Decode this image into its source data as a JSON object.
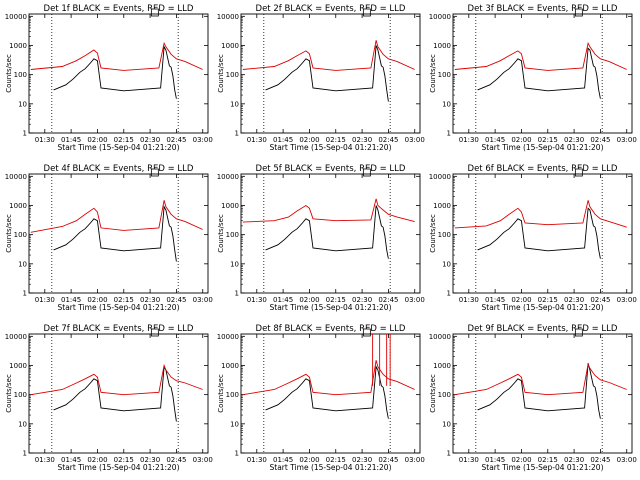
{
  "xlabel": "Start Time (15-Sep-04 01:21:20)",
  "ylabel": "Counts/sec",
  "series_names": [
    "Events",
    "LLD"
  ],
  "colors": {
    "events": "#000000",
    "lld": "#dd0000"
  },
  "x_ticks": [
    "01:30",
    "01:45",
    "02:00",
    "02:15",
    "02:30",
    "02:45",
    "03:00"
  ],
  "y_ticks": [
    "1",
    "10",
    "100",
    "1000",
    "10000"
  ],
  "chart_data": [
    {
      "type": "line",
      "title": "Det 1f BLACK = Events, RED = LLD",
      "y_scale": "log",
      "ylim": [
        1,
        12000
      ],
      "xlim_minutes_from_0121": [
        0,
        102
      ],
      "vlines": [
        "01:34",
        "02:46"
      ],
      "series": [
        {
          "name": "Events",
          "x": [
            "01:35",
            "01:42",
            "01:46",
            "01:50",
            "01:53",
            "01:56",
            "01:58",
            "02:00",
            "02:02",
            "02:15",
            "02:36",
            "02:38",
            "02:39",
            "02:41",
            "02:42",
            "02:43",
            "02:44",
            "02:45"
          ],
          "values": [
            30,
            45,
            70,
            120,
            160,
            250,
            350,
            300,
            35,
            28,
            35,
            900,
            700,
            200,
            180,
            90,
            30,
            15
          ]
        },
        {
          "name": "LLD",
          "x": [
            "01:22",
            "01:40",
            "01:48",
            "01:53",
            "01:58",
            "02:00",
            "02:02",
            "02:15",
            "02:35",
            "02:38",
            "02:39",
            "02:42",
            "02:45",
            "02:50",
            "03:00"
          ],
          "values": [
            150,
            190,
            300,
            450,
            700,
            550,
            170,
            140,
            170,
            1200,
            900,
            500,
            350,
            280,
            150
          ]
        }
      ]
    },
    {
      "type": "line",
      "title": "Det 2f BLACK = Events, RED = LLD",
      "y_scale": "log",
      "ylim": [
        1,
        12000
      ],
      "xlim_minutes_from_0121": [
        0,
        102
      ],
      "vlines": [
        "01:34",
        "02:46"
      ],
      "series": [
        {
          "name": "Events",
          "x": [
            "01:35",
            "01:42",
            "01:46",
            "01:50",
            "01:53",
            "01:56",
            "01:58",
            "02:00",
            "02:02",
            "02:15",
            "02:36",
            "02:38",
            "02:39",
            "02:41",
            "02:42",
            "02:43",
            "02:44",
            "02:45"
          ],
          "values": [
            30,
            45,
            70,
            120,
            160,
            250,
            350,
            300,
            35,
            28,
            35,
            1000,
            700,
            200,
            180,
            90,
            30,
            12
          ]
        },
        {
          "name": "LLD",
          "x": [
            "01:22",
            "01:40",
            "01:48",
            "01:53",
            "01:58",
            "02:00",
            "02:02",
            "02:15",
            "02:35",
            "02:38",
            "02:39",
            "02:42",
            "02:45",
            "02:50",
            "03:00"
          ],
          "values": [
            150,
            190,
            300,
            450,
            650,
            520,
            170,
            140,
            170,
            1500,
            900,
            500,
            350,
            280,
            150
          ]
        }
      ]
    },
    {
      "type": "line",
      "title": "Det 3f BLACK = Events, RED = LLD",
      "y_scale": "log",
      "ylim": [
        1,
        12000
      ],
      "xlim_minutes_from_0121": [
        0,
        102
      ],
      "vlines": [
        "01:34",
        "02:46"
      ],
      "series": [
        {
          "name": "Events",
          "x": [
            "01:35",
            "01:42",
            "01:46",
            "01:50",
            "01:53",
            "01:56",
            "01:58",
            "02:00",
            "02:02",
            "02:15",
            "02:36",
            "02:38",
            "02:39",
            "02:41",
            "02:42",
            "02:43",
            "02:44",
            "02:45"
          ],
          "values": [
            30,
            45,
            70,
            120,
            160,
            250,
            350,
            300,
            35,
            28,
            35,
            800,
            700,
            200,
            180,
            90,
            30,
            15
          ]
        },
        {
          "name": "LLD",
          "x": [
            "01:22",
            "01:40",
            "01:48",
            "01:53",
            "01:58",
            "02:00",
            "02:02",
            "02:15",
            "02:35",
            "02:38",
            "02:39",
            "02:42",
            "02:45",
            "02:50",
            "03:00"
          ],
          "values": [
            150,
            190,
            300,
            450,
            650,
            520,
            170,
            140,
            170,
            1200,
            900,
            500,
            350,
            280,
            150
          ]
        }
      ]
    },
    {
      "type": "line",
      "title": "Det 4f BLACK = Events, RED = LLD",
      "y_scale": "log",
      "ylim": [
        1,
        12000
      ],
      "xlim_minutes_from_0121": [
        0,
        102
      ],
      "vlines": [
        "01:34",
        "02:46"
      ],
      "series": [
        {
          "name": "Events",
          "x": [
            "01:35",
            "01:42",
            "01:46",
            "01:50",
            "01:53",
            "01:56",
            "01:58",
            "02:00",
            "02:02",
            "02:15",
            "02:36",
            "02:38",
            "02:39",
            "02:41",
            "02:42",
            "02:43",
            "02:44",
            "02:45"
          ],
          "values": [
            30,
            45,
            70,
            120,
            160,
            250,
            350,
            300,
            35,
            28,
            35,
            900,
            700,
            200,
            180,
            90,
            30,
            12
          ]
        },
        {
          "name": "LLD",
          "x": [
            "01:22",
            "01:40",
            "01:48",
            "01:53",
            "01:58",
            "02:00",
            "02:02",
            "02:15",
            "02:35",
            "02:38",
            "02:39",
            "02:42",
            "02:45",
            "02:50",
            "03:00"
          ],
          "values": [
            120,
            190,
            300,
            500,
            800,
            600,
            170,
            140,
            170,
            1500,
            900,
            500,
            350,
            280,
            150
          ]
        }
      ]
    },
    {
      "type": "line",
      "title": "Det 5f BLACK = Events, RED = LLD",
      "y_scale": "log",
      "ylim": [
        1,
        12000
      ],
      "xlim_minutes_from_0121": [
        0,
        102
      ],
      "vlines": [
        "01:34",
        "02:46"
      ],
      "series": [
        {
          "name": "Events",
          "x": [
            "01:35",
            "01:42",
            "01:46",
            "01:50",
            "01:53",
            "01:56",
            "01:58",
            "02:00",
            "02:02",
            "02:15",
            "02:36",
            "02:38",
            "02:39",
            "02:41",
            "02:42",
            "02:43",
            "02:44",
            "02:45"
          ],
          "values": [
            30,
            45,
            70,
            120,
            160,
            250,
            350,
            300,
            35,
            28,
            35,
            1000,
            700,
            200,
            180,
            90,
            30,
            15
          ]
        },
        {
          "name": "LLD",
          "x": [
            "01:22",
            "01:40",
            "01:48",
            "01:53",
            "01:58",
            "02:00",
            "02:02",
            "02:15",
            "02:35",
            "02:38",
            "02:39",
            "02:42",
            "02:45",
            "02:50",
            "03:00"
          ],
          "values": [
            270,
            300,
            400,
            650,
            1000,
            800,
            350,
            300,
            320,
            1700,
            1000,
            700,
            500,
            400,
            280
          ]
        }
      ]
    },
    {
      "type": "line",
      "title": "Det 6f BLACK = Events, RED = LLD",
      "y_scale": "log",
      "ylim": [
        1,
        12000
      ],
      "xlim_minutes_from_0121": [
        0,
        102
      ],
      "vlines": [
        "01:34",
        "02:46"
      ],
      "series": [
        {
          "name": "Events",
          "x": [
            "01:35",
            "01:42",
            "01:46",
            "01:50",
            "01:53",
            "01:56",
            "01:58",
            "02:00",
            "02:02",
            "02:15",
            "02:36",
            "02:38",
            "02:39",
            "02:41",
            "02:42",
            "02:43",
            "02:44",
            "02:45"
          ],
          "values": [
            30,
            45,
            70,
            120,
            160,
            250,
            350,
            300,
            35,
            28,
            35,
            800,
            700,
            200,
            180,
            90,
            30,
            15
          ]
        },
        {
          "name": "LLD",
          "x": [
            "01:22",
            "01:40",
            "01:48",
            "01:53",
            "01:58",
            "02:00",
            "02:02",
            "02:15",
            "02:35",
            "02:38",
            "02:39",
            "02:42",
            "02:45",
            "02:50",
            "03:00"
          ],
          "values": [
            170,
            200,
            300,
            500,
            800,
            600,
            250,
            220,
            250,
            1500,
            900,
            500,
            350,
            280,
            180
          ]
        }
      ]
    },
    {
      "type": "line",
      "title": "Det 7f BLACK = Events, RED = LLD",
      "y_scale": "log",
      "ylim": [
        1,
        12000
      ],
      "xlim_minutes_from_0121": [
        0,
        102
      ],
      "vlines": [
        "01:34",
        "02:46"
      ],
      "series": [
        {
          "name": "Events",
          "x": [
            "01:35",
            "01:42",
            "01:46",
            "01:50",
            "01:53",
            "01:56",
            "01:58",
            "02:00",
            "02:02",
            "02:15",
            "02:36",
            "02:38",
            "02:39",
            "02:41",
            "02:42",
            "02:43",
            "02:44",
            "02:45"
          ],
          "values": [
            30,
            45,
            70,
            120,
            160,
            250,
            350,
            300,
            35,
            28,
            35,
            900,
            700,
            200,
            180,
            90,
            30,
            12
          ]
        },
        {
          "name": "LLD",
          "x": [
            "01:22",
            "01:40",
            "01:48",
            "01:53",
            "01:58",
            "02:00",
            "02:02",
            "02:15",
            "02:35",
            "02:38",
            "02:39",
            "02:42",
            "02:45",
            "02:50",
            "03:00"
          ],
          "values": [
            100,
            150,
            250,
            350,
            500,
            400,
            120,
            100,
            120,
            1000,
            700,
            400,
            300,
            250,
            150
          ]
        }
      ]
    },
    {
      "type": "line",
      "title": "Det 8f BLACK = Events, RED = LLD",
      "y_scale": "log",
      "ylim": [
        1,
        12000
      ],
      "xlim_minutes_from_0121": [
        0,
        102
      ],
      "vlines": [
        "01:34",
        "02:46"
      ],
      "spikes": [
        "02:36",
        "02:40",
        "02:44",
        "02:46"
      ],
      "series": [
        {
          "name": "Events",
          "x": [
            "01:35",
            "01:42",
            "01:46",
            "01:50",
            "01:53",
            "01:56",
            "01:58",
            "02:00",
            "02:02",
            "02:15",
            "02:36",
            "02:38",
            "02:39",
            "02:41",
            "02:42",
            "02:43",
            "02:44",
            "02:45"
          ],
          "values": [
            30,
            45,
            70,
            120,
            160,
            250,
            350,
            300,
            35,
            28,
            35,
            900,
            700,
            200,
            180,
            90,
            30,
            15
          ]
        },
        {
          "name": "LLD",
          "x": [
            "01:22",
            "01:40",
            "01:48",
            "01:53",
            "01:58",
            "02:00",
            "02:02",
            "02:15",
            "02:35",
            "02:38",
            "02:39",
            "02:42",
            "02:45",
            "02:50",
            "03:00"
          ],
          "values": [
            100,
            150,
            250,
            350,
            500,
            400,
            120,
            100,
            120,
            1500,
            900,
            500,
            350,
            280,
            150
          ]
        }
      ]
    },
    {
      "type": "line",
      "title": "Det 9f BLACK = Events, RED = LLD",
      "y_scale": "log",
      "ylim": [
        1,
        12000
      ],
      "xlim_minutes_from_0121": [
        0,
        102
      ],
      "vlines": [
        "01:34",
        "02:46"
      ],
      "series": [
        {
          "name": "Events",
          "x": [
            "01:35",
            "01:42",
            "01:46",
            "01:50",
            "01:53",
            "01:56",
            "01:58",
            "02:00",
            "02:02",
            "02:15",
            "02:36",
            "02:38",
            "02:39",
            "02:41",
            "02:42",
            "02:43",
            "02:44",
            "02:45"
          ],
          "values": [
            30,
            45,
            70,
            120,
            160,
            250,
            350,
            300,
            35,
            28,
            35,
            1200,
            700,
            200,
            180,
            90,
            30,
            15
          ]
        },
        {
          "name": "LLD",
          "x": [
            "01:22",
            "01:40",
            "01:48",
            "01:53",
            "01:58",
            "02:00",
            "02:02",
            "02:15",
            "02:35",
            "02:38",
            "02:39",
            "02:42",
            "02:45",
            "02:50",
            "03:00"
          ],
          "values": [
            100,
            150,
            250,
            350,
            500,
            400,
            120,
            100,
            120,
            1100,
            800,
            450,
            320,
            260,
            150
          ]
        }
      ]
    }
  ]
}
